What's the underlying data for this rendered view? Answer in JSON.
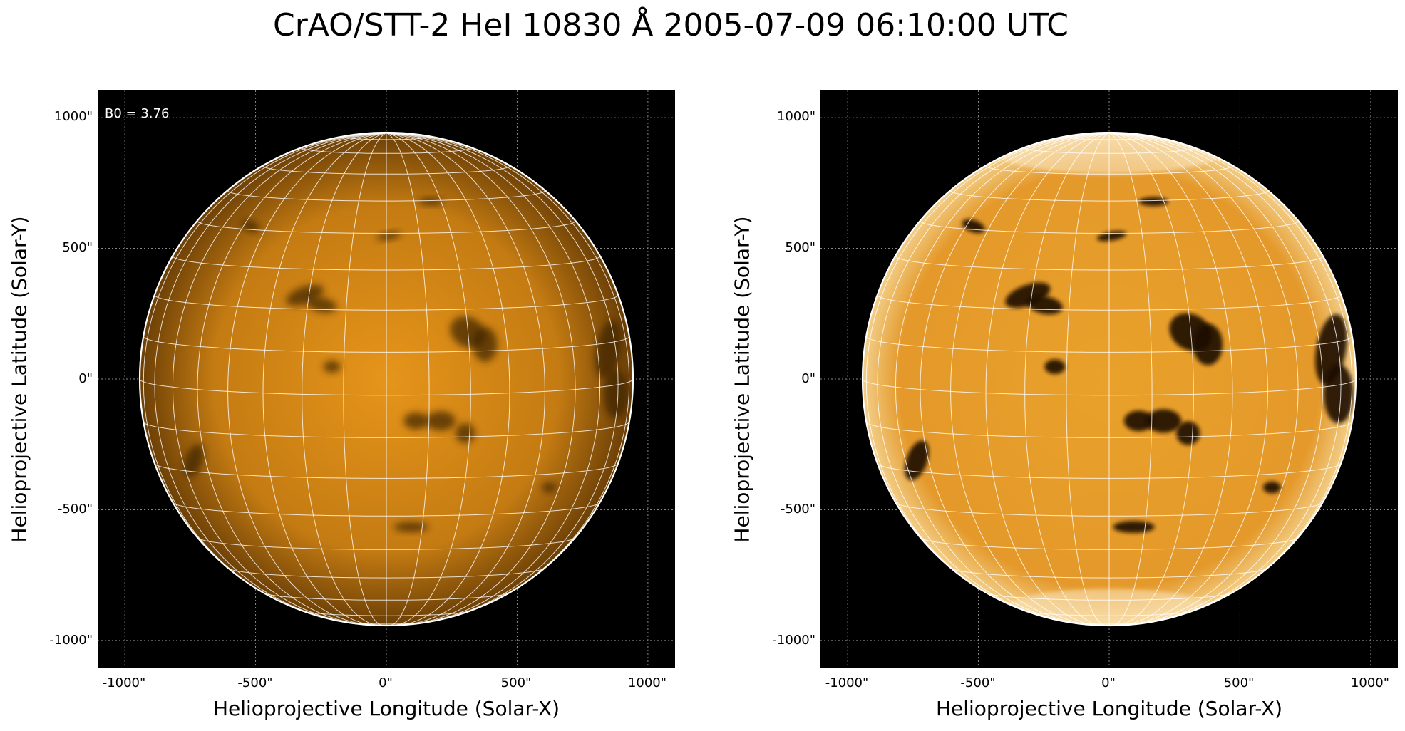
{
  "figure": {
    "title": "CrAO/STT-2 HeI 10830 Å 2005-07-09 06:10:00 UTC"
  },
  "panels": [
    {
      "id": "left",
      "annotation": "B0 = 3.76",
      "xlabel": "Helioprojective Longitude (Solar-X)",
      "ylabel": "Helioprojective Latitude (Solar-Y)",
      "xticks": [
        "-1000\"",
        "-500\"",
        "0\"",
        "500\"",
        "1000\""
      ],
      "yticks": [
        "1000\"",
        "500\"",
        "0\"",
        "-500\"",
        "-1000\""
      ],
      "contrast": "normal"
    },
    {
      "id": "right",
      "annotation": "",
      "xlabel": "Helioprojective Longitude (Solar-X)",
      "ylabel": "Helioprojective Latitude (Solar-Y)",
      "xticks": [
        "-1000\"",
        "-500\"",
        "0\"",
        "500\"",
        "1000\""
      ],
      "yticks": [
        "1000\"",
        "500\"",
        "0\"",
        "-500\"",
        "-1000\""
      ],
      "contrast": "enhanced"
    }
  ],
  "colors": {
    "disk_center": "#e6951a",
    "disk_limb": "#6b3f06",
    "disk_enhanced": "#e9a12a",
    "background": "#000000",
    "grid": "#ffffff"
  }
}
